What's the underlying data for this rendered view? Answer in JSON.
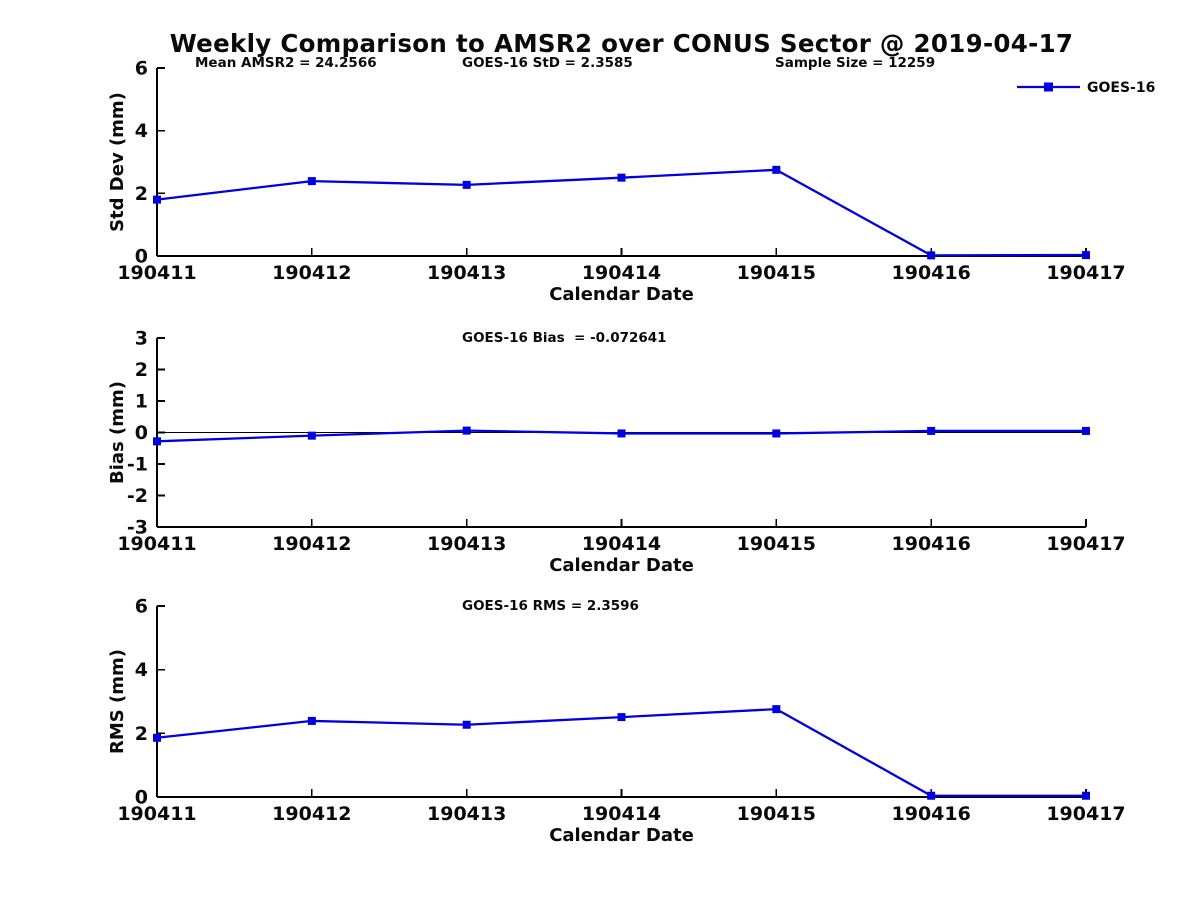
{
  "figure": {
    "title": "Weekly Comparison to AMSR2 over CONUS Sector @ 2019-04-17"
  },
  "colors": {
    "series": "#0000e0",
    "axis": "#000000",
    "text": "#0a0a0a"
  },
  "chart_data": [
    {
      "type": "line",
      "x": [
        "190411",
        "190412",
        "190413",
        "190414",
        "190415",
        "190416",
        "190417"
      ],
      "xlabel": "Calendar Date",
      "ylabel": "Std Dev (mm)",
      "ylim": [
        0,
        6
      ],
      "yticks": [
        0,
        2,
        4,
        6
      ],
      "grid": false,
      "series": [
        {
          "name": "GOES-16",
          "values": [
            1.8,
            2.39,
            2.27,
            2.5,
            2.75,
            0.02,
            0.03
          ]
        }
      ],
      "annotations": [
        "Mean AMSR2 = 24.2566",
        "GOES-16 StD = 2.3585",
        "Sample Size = 12259"
      ],
      "legend": {
        "label": "GOES-16",
        "position": "top-right"
      }
    },
    {
      "type": "line",
      "x": [
        "190411",
        "190412",
        "190413",
        "190414",
        "190415",
        "190416",
        "190417"
      ],
      "xlabel": "Calendar Date",
      "ylabel": "Bias (mm)",
      "ylim": [
        -3,
        3
      ],
      "yticks": [
        -3,
        -2,
        -1,
        0,
        1,
        2,
        3
      ],
      "grid": false,
      "zero_line": true,
      "series": [
        {
          "name": "GOES-16",
          "values": [
            -0.28,
            -0.1,
            0.06,
            -0.03,
            -0.03,
            0.05,
            0.05
          ]
        }
      ],
      "annotations": [
        "GOES-16 Bias  = -0.072641"
      ]
    },
    {
      "type": "line",
      "x": [
        "190411",
        "190412",
        "190413",
        "190414",
        "190415",
        "190416",
        "190417"
      ],
      "xlabel": "Calendar Date",
      "ylabel": "RMS (mm)",
      "ylim": [
        0,
        6
      ],
      "yticks": [
        0,
        2,
        4,
        6
      ],
      "grid": false,
      "series": [
        {
          "name": "GOES-16",
          "values": [
            1.86,
            2.39,
            2.27,
            2.51,
            2.76,
            0.04,
            0.04
          ]
        }
      ],
      "annotations": [
        "GOES-16 RMS = 2.3596"
      ]
    }
  ]
}
